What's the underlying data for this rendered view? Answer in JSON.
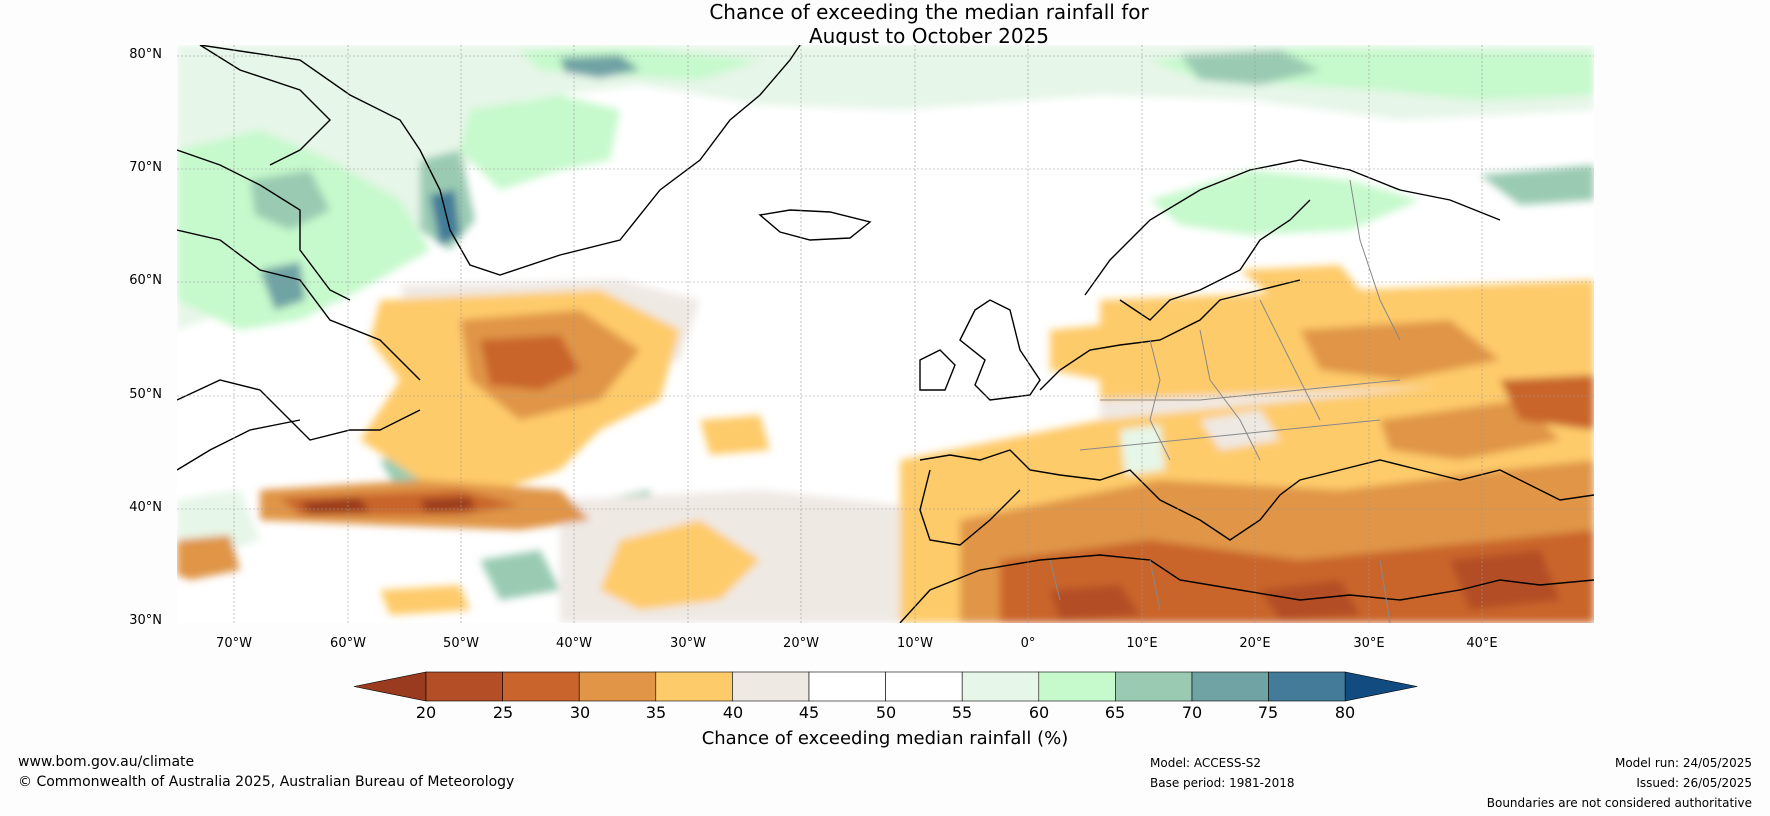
{
  "title": {
    "line1": "Chance of exceeding the median rainfall for",
    "line2": "August to October 2025"
  },
  "map": {
    "lat_labels": [
      "80°N",
      "70°N",
      "60°N",
      "50°N",
      "40°N",
      "30°N"
    ],
    "lon_labels": [
      "70°W",
      "60°W",
      "50°W",
      "40°W",
      "30°W",
      "20°W",
      "10°W",
      "0°",
      "10°E",
      "20°E",
      "30°E",
      "40°E"
    ]
  },
  "colorbar": {
    "ticks": [
      "20",
      "25",
      "30",
      "35",
      "40",
      "45",
      "50",
      "55",
      "60",
      "65",
      "70",
      "75",
      "80"
    ],
    "colors": [
      "#9a3a1e",
      "#b34e26",
      "#c9652c",
      "#e09547",
      "#fecb6a",
      "#efe9e4",
      "#ffffff",
      "#ffffff",
      "#e6f6e8",
      "#c6f9cc",
      "#9acbb2",
      "#6fa3a4",
      "#437b98",
      "#124b80"
    ],
    "label": "Chance of exceeding median rainfall (%)"
  },
  "footer": {
    "website": "www.bom.gov.au/climate",
    "copyright": "© Commonwealth of Australia 2025, Australian Bureau of Meteorology",
    "model": "Model: ACCESS-S2",
    "base_period": "Base period: 1981-2018",
    "model_run": "Model run: 24/05/2025",
    "issued": "Issued: 26/05/2025",
    "disclaimer": "Boundaries are not considered authoritative"
  }
}
